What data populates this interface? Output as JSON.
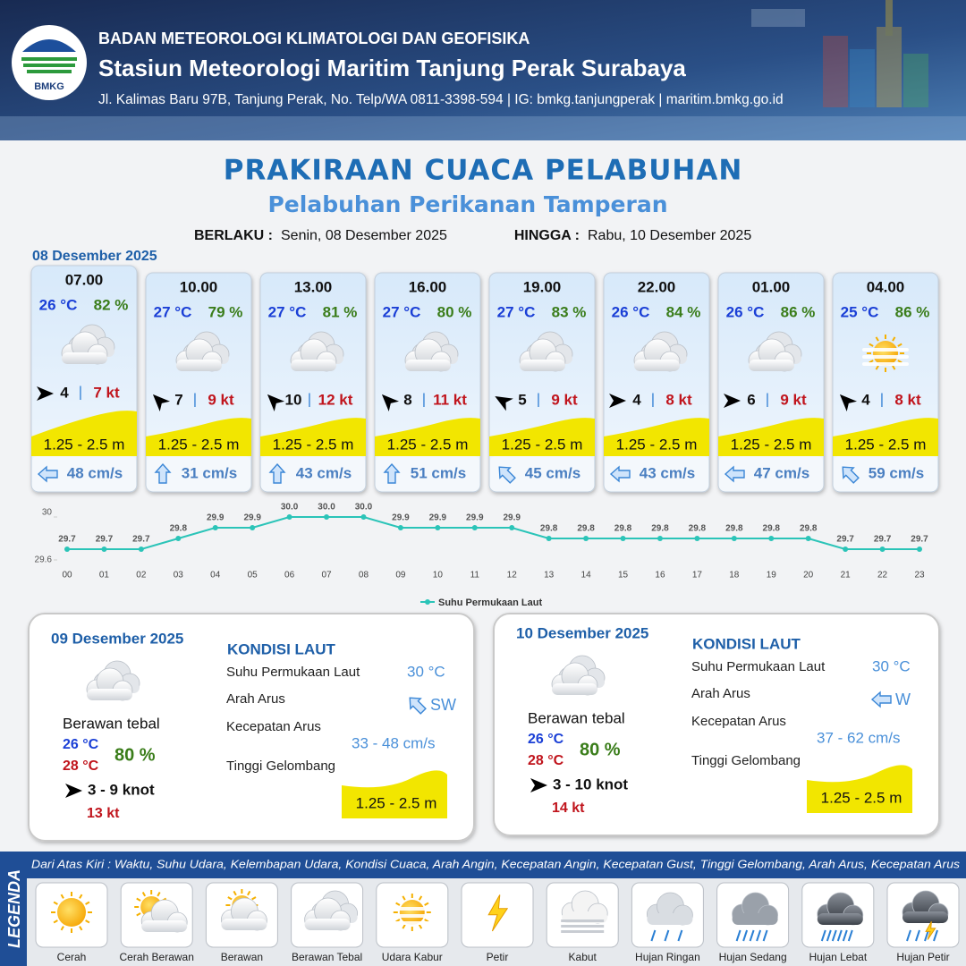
{
  "header": {
    "logo": "BMKG",
    "agency": "BADAN METEOROLOGI KLIMATOLOGI DAN GEOFISIKA",
    "station": "Stasiun Meteorologi Maritim Tanjung Perak Surabaya",
    "address": "Jl. Kalimas Baru 97B, Tanjung Perak, No. Telp/WA 0811-3398-594 | IG: bmkg.tanjungperak | maritim.bmkg.go.id"
  },
  "title": "PRAKIRAAN CUACA PELABUHAN",
  "subtitle": "Pelabuhan Perikanan Tamperan",
  "validity": {
    "from_label": "BERLAKU :",
    "from": "Senin, 08 Desember 2025",
    "to_label": "HINGGA :",
    "to": "Rabu, 10 Desember 2025"
  },
  "today": {
    "date": "08 Desember 2025",
    "forecasts": [
      {
        "time": "07.00",
        "temp": "26 °C",
        "rh": "82 %",
        "wind": "4",
        "gust": "7 kt",
        "wave": "1.25 - 2.5 m",
        "current": "48 cm/s"
      },
      {
        "time": "10.00",
        "temp": "27 °C",
        "rh": "79 %",
        "wind": "7",
        "gust": "9 kt",
        "wave": "1.25 - 2.5 m",
        "current": "31 cm/s"
      },
      {
        "time": "13.00",
        "temp": "27 °C",
        "rh": "81 %",
        "wind": "10",
        "gust": "12 kt",
        "wave": "1.25 - 2.5 m",
        "current": "43 cm/s"
      },
      {
        "time": "16.00",
        "temp": "27 °C",
        "rh": "80 %",
        "wind": "8",
        "gust": "11 kt",
        "wave": "1.25 - 2.5 m",
        "current": "51 cm/s"
      },
      {
        "time": "19.00",
        "temp": "27 °C",
        "rh": "83 %",
        "wind": "5",
        "gust": "9 kt",
        "wave": "1.25 - 2.5 m",
        "current": "45 cm/s"
      },
      {
        "time": "22.00",
        "temp": "26 °C",
        "rh": "84 %",
        "wind": "4",
        "gust": "8 kt",
        "wave": "1.25 - 2.5 m",
        "current": "43 cm/s"
      },
      {
        "time": "01.00",
        "temp": "26 °C",
        "rh": "86 %",
        "wind": "6",
        "gust": "9 kt",
        "wave": "1.25 - 2.5 m",
        "current": "47 cm/s"
      },
      {
        "time": "04.00",
        "temp": "25 °C",
        "rh": "86 %",
        "wind": "4",
        "gust": "8 kt",
        "wave": "1.25 - 2.5 m",
        "current": "59 cm/s"
      }
    ]
  },
  "chart_data": {
    "type": "line",
    "categories": [
      "00",
      "01",
      "02",
      "03",
      "04",
      "05",
      "06",
      "07",
      "08",
      "09",
      "10",
      "11",
      "12",
      "13",
      "14",
      "15",
      "16",
      "17",
      "18",
      "19",
      "20",
      "21",
      "22",
      "23"
    ],
    "series": [
      {
        "name": "Suhu Permukaan Laut",
        "color": "#2bc4b8",
        "values": [
          29.7,
          29.7,
          29.7,
          29.8,
          29.9,
          29.9,
          30,
          30,
          30,
          29.9,
          29.9,
          29.9,
          29.9,
          29.8,
          29.8,
          29.8,
          29.8,
          29.8,
          29.8,
          29.8,
          29.8,
          29.7,
          29.7,
          29.7
        ],
        "value_labels": [
          "29.7",
          "29.7",
          "29.7",
          "29.8",
          "29.9",
          "29.9",
          "30.0",
          "30.0",
          "30.0",
          "29.9",
          "29.9",
          "29.9",
          "29.9",
          "29.8",
          "29.8",
          "29.8",
          "29.8",
          "29.8",
          "29.8",
          "29.8",
          "29.8",
          "29.7",
          "29.7",
          "29.7"
        ]
      }
    ],
    "ylim": [
      29.6,
      30
    ],
    "yticks": [
      29.6,
      30
    ],
    "legend": "bottom"
  },
  "days": [
    {
      "date": "09 Desember 2025",
      "condition": "Berawan tebal",
      "tmin": "26 °C",
      "tmax": "28 °C",
      "rh": "80 %",
      "wind": "3  - 9 knot",
      "gust": "13 kt",
      "sea_title": "KONDISI LAUT",
      "sst_label": "Suhu Permukaan Laut",
      "dir_label": "Arah Arus",
      "speed_label": "Kecepatan Arus",
      "wave_label": "Tinggi Gelombang",
      "sst": "30 °C",
      "current_dir": "SW",
      "current_speed": "33  - 48 cm/s",
      "wave": "1.25 - 2.5 m"
    },
    {
      "date": "10 Desember 2025",
      "condition": "Berawan tebal",
      "tmin": "26 °C",
      "tmax": "28 °C",
      "rh": "80 %",
      "wind": "3  - 10 knot",
      "gust": "14 kt",
      "sea_title": "KONDISI LAUT",
      "sst_label": "Suhu Permukaan Laut",
      "dir_label": "Arah Arus",
      "speed_label": "Kecepatan Arus",
      "wave_label": "Tinggi Gelombang",
      "sst": "30 °C",
      "current_dir": "W",
      "current_speed": "37 - 62 cm/s",
      "wave": "1.25 - 2.5 m"
    }
  ],
  "legend": {
    "title": "LEGENDA",
    "description": "Dari Atas Kiri : Waktu, Suhu Udara, Kelembapan Udara, Kondisi Cuaca, Arah Angin, Kecepatan Angin, Kecepatan Gust, Tinggi Gelombang, Arah Arus, Kecepatan Arus",
    "items": [
      "Cerah",
      "Cerah Berawan",
      "Berawan",
      "Berawan Tebal",
      "Udara Kabur",
      "Petir",
      "Kabut",
      "Hujan Ringan",
      "Hujan Sedang",
      "Hujan Lebat",
      "Hujan Petir"
    ]
  }
}
